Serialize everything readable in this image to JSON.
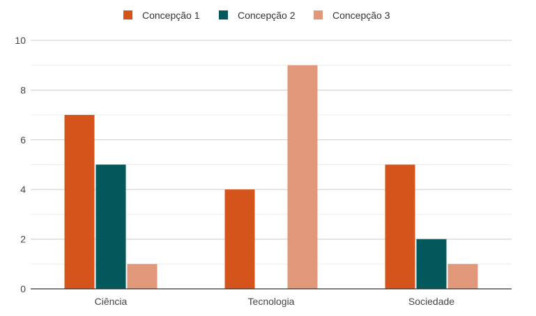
{
  "chart_data": {
    "type": "bar",
    "title": "",
    "xlabel": "",
    "ylabel": "",
    "categories": [
      "Ciência",
      "Tecnologia",
      "Sociedade"
    ],
    "series": [
      {
        "name": "Concepção 1",
        "color": "#d5541b",
        "values": [
          7,
          4,
          5
        ]
      },
      {
        "name": "Concepção 2",
        "color": "#02585a",
        "values": [
          5,
          0,
          2
        ]
      },
      {
        "name": "Concepção 3",
        "color": "#e0977a",
        "values": [
          1,
          9,
          1
        ]
      }
    ],
    "ylim": [
      0,
      10
    ],
    "yticks": [
      0,
      2,
      4,
      6,
      8,
      10
    ],
    "grid": true,
    "minor_grid": true,
    "legend_position": "top"
  }
}
